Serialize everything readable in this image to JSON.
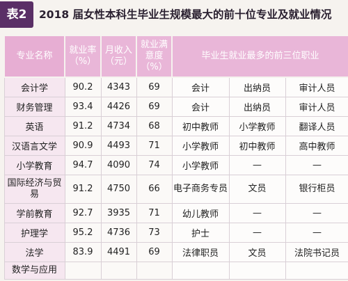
{
  "title": {
    "badge": "表2",
    "text": "2018 届女性本科生毕业生规模最大的前十位专业及就业情况"
  },
  "headers": {
    "major": "专业名称",
    "employment_rate": "就业率（%）",
    "monthly_income": "月收入（元）",
    "satisfaction": "就业满意度（%）",
    "top_jobs": "毕业生就业最多的前三位职业"
  },
  "rows": [
    {
      "major": "会计学",
      "rate": "90.2",
      "income": "4343",
      "satisfaction": "69",
      "job1": "会计",
      "job2": "出纳员",
      "job3": "审计人员"
    },
    {
      "major": "财务管理",
      "rate": "93.4",
      "income": "4426",
      "satisfaction": "69",
      "job1": "会计",
      "job2": "出纳员",
      "job3": "审计人员"
    },
    {
      "major": "英语",
      "rate": "91.2",
      "income": "4734",
      "satisfaction": "68",
      "job1": "初中教师",
      "job2": "小学教师",
      "job3": "翻译人员"
    },
    {
      "major": "汉语言文学",
      "rate": "90.9",
      "income": "4493",
      "satisfaction": "71",
      "job1": "小学教师",
      "job2": "初中教师",
      "job3": "高中教师"
    },
    {
      "major": "小学教育",
      "rate": "94.7",
      "income": "4090",
      "satisfaction": "74",
      "job1": "小学教师",
      "job2": "—",
      "job3": "—"
    },
    {
      "major": "国际经济与贸易",
      "rate": "91.2",
      "income": "4750",
      "satisfaction": "66",
      "job1": "电子商务专员",
      "job2": "文员",
      "job3": "银行柜员"
    },
    {
      "major": "学前教育",
      "rate": "92.7",
      "income": "3935",
      "satisfaction": "71",
      "job1": "幼儿教师",
      "job2": "—",
      "job3": "—"
    },
    {
      "major": "护理学",
      "rate": "95.2",
      "income": "4736",
      "satisfaction": "73",
      "job1": "护士",
      "job2": "—",
      "job3": "—"
    },
    {
      "major": "法学",
      "rate": "83.9",
      "income": "4491",
      "satisfaction": "69",
      "job1": "法律职员",
      "job2": "文员",
      "job3": "法院书记员"
    },
    {
      "major": "数学与应用",
      "rate": "",
      "income": "",
      "satisfaction": "",
      "job1": "",
      "job2": "",
      "job3": ""
    }
  ]
}
